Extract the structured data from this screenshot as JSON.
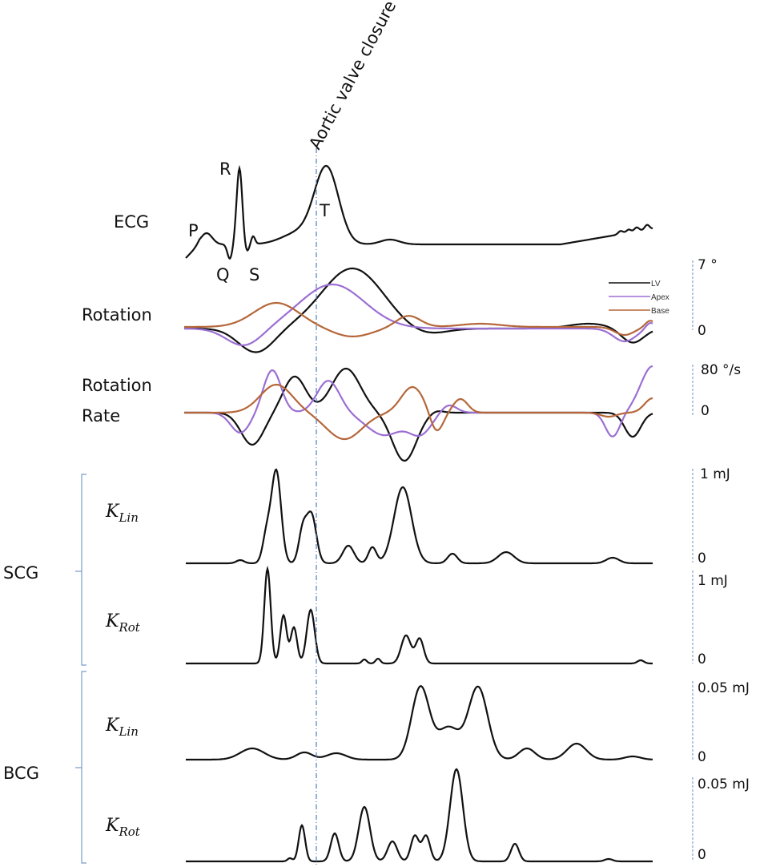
{
  "annotation": "Aortic valve closure",
  "ecg": {
    "label": "ECG",
    "waves": [
      "P",
      "Q",
      "R",
      "S",
      "T"
    ]
  },
  "rotation": {
    "label": "Rotation",
    "scale_top": "7 °",
    "scale_zero": "0"
  },
  "rotation_rate": {
    "label_line1": "Rotation",
    "label_line2": "Rate",
    "scale_top": "80 °/s",
    "scale_zero": "0"
  },
  "legend": [
    {
      "name": "LV",
      "color": "#111111"
    },
    {
      "name": "Apex",
      "color": "#9b6fd3"
    },
    {
      "name": "Base",
      "color": "#b5673a"
    }
  ],
  "groups": [
    {
      "label": "SCG",
      "rows": [
        {
          "k": "K",
          "sub": "Lin",
          "scale_top": "1 mJ",
          "scale_zero": "0"
        },
        {
          "k": "K",
          "sub": "Rot",
          "scale_top": "1 mJ",
          "scale_zero": "0"
        }
      ]
    },
    {
      "label": "BCG",
      "rows": [
        {
          "k": "K",
          "sub": "Lin",
          "scale_top": "0.05 mJ",
          "scale_zero": "0"
        },
        {
          "k": "K",
          "sub": "Rot",
          "scale_top": "0.05 mJ",
          "scale_zero": "0"
        }
      ]
    }
  ],
  "colors": {
    "marker_line": "#4a7fc1",
    "scale_bar": "#6b8fc4",
    "bracket": "#7a9cc8"
  }
}
